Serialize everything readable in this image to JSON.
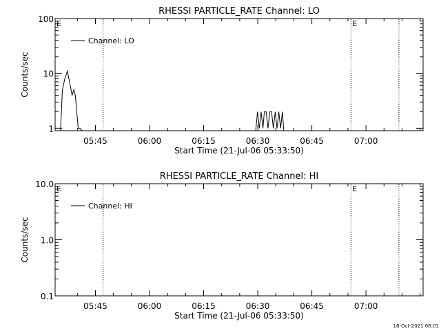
{
  "footer": {
    "timestamp": "16-Oct-2021 08:01"
  },
  "chart_data": [
    {
      "type": "line",
      "title": "RHESSI PARTICLE_RATE Channel: LO",
      "xlabel": "Start Time (21-Jul-06 05:33:50)",
      "ylabel": "Counts/sec",
      "yscale": "log",
      "ylim": [
        0.9,
        100
      ],
      "y_ticks": [
        1,
        10,
        100
      ],
      "y_tick_labels": [
        "1",
        "10",
        "100"
      ],
      "xlim_minutes": [
        0,
        102
      ],
      "x_ticks_minutes": [
        11.17,
        26.17,
        41.17,
        56.17,
        71.17,
        86.17
      ],
      "x_tick_labels": [
        "05:45",
        "06:00",
        "06:15",
        "06:30",
        "06:45",
        "07:00"
      ],
      "legend": {
        "entries": [
          "Channel: LO"
        ],
        "position": "top-left"
      },
      "markers": [
        {
          "x": 0,
          "label": "E",
          "dotted": false
        },
        {
          "x": 13.3,
          "label": "",
          "dotted": true
        },
        {
          "x": 82.0,
          "label": "E",
          "dotted": true
        },
        {
          "x": 95.3,
          "label": "",
          "dotted": true
        }
      ],
      "series": [
        {
          "name": "Channel: LO",
          "x": [
            1.5,
            2.0,
            2.7,
            3.4,
            4.0,
            4.7,
            5.2,
            5.6,
            6.0,
            6.4,
            6.9,
            7.5
          ],
          "y": [
            0.9,
            5.0,
            8.0,
            11.0,
            7.0,
            4.0,
            5.0,
            4.0,
            2.0,
            1.0,
            1.0,
            0.9
          ]
        },
        {
          "name": "",
          "x": [
            55.6,
            56.1,
            56.6,
            57.1,
            57.6,
            58.0,
            58.5,
            59.0,
            59.5,
            60.0,
            60.5,
            61.0,
            61.5,
            62.0,
            62.5,
            63.0,
            63.4
          ],
          "y": [
            0.9,
            2.0,
            1.0,
            2.0,
            1.0,
            2.0,
            2.0,
            1.0,
            2.0,
            2.0,
            1.0,
            2.0,
            1.0,
            2.0,
            1.0,
            2.0,
            0.9
          ]
        }
      ]
    },
    {
      "type": "line",
      "title": "RHESSI PARTICLE_RATE Channel: HI",
      "xlabel": "Start Time (21-Jul-06 05:33:50)",
      "ylabel": "Counts/sec",
      "yscale": "log",
      "ylim": [
        0.1,
        10
      ],
      "y_ticks": [
        0.1,
        1,
        10
      ],
      "y_tick_labels": [
        "0.1",
        "1.0",
        "10.0"
      ],
      "xlim_minutes": [
        0,
        102
      ],
      "x_ticks_minutes": [
        11.17,
        26.17,
        41.17,
        56.17,
        71.17,
        86.17
      ],
      "x_tick_labels": [
        "05:45",
        "06:00",
        "06:15",
        "06:30",
        "06:45",
        "07:00"
      ],
      "legend": {
        "entries": [
          "Channel: HI"
        ],
        "position": "top-left"
      },
      "markers": [
        {
          "x": 0,
          "label": "E",
          "dotted": false
        },
        {
          "x": 13.3,
          "label": "",
          "dotted": true
        },
        {
          "x": 82.0,
          "label": "E",
          "dotted": true
        },
        {
          "x": 95.3,
          "label": "",
          "dotted": true
        }
      ],
      "series": [
        {
          "name": "Channel: HI",
          "x": [],
          "y": []
        }
      ]
    }
  ]
}
